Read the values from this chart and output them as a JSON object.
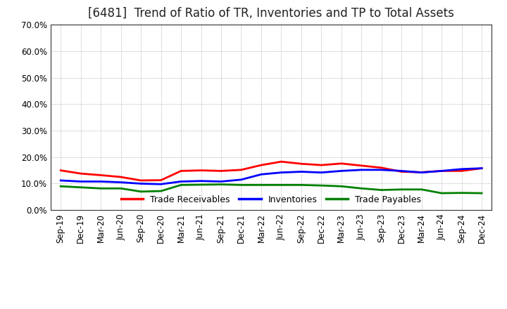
{
  "title": "[6481]  Trend of Ratio of TR, Inventories and TP to Total Assets",
  "x_labels": [
    "Sep-19",
    "Dec-19",
    "Mar-20",
    "Jun-20",
    "Sep-20",
    "Dec-20",
    "Mar-21",
    "Jun-21",
    "Sep-21",
    "Dec-21",
    "Mar-22",
    "Jun-22",
    "Sep-22",
    "Dec-22",
    "Mar-23",
    "Jun-23",
    "Sep-23",
    "Dec-23",
    "Mar-24",
    "Jun-24",
    "Sep-24",
    "Dec-24"
  ],
  "trade_receivables": [
    0.15,
    0.138,
    0.132,
    0.125,
    0.112,
    0.113,
    0.148,
    0.15,
    0.148,
    0.152,
    0.17,
    0.183,
    0.175,
    0.17,
    0.176,
    0.168,
    0.16,
    0.145,
    0.143,
    0.148,
    0.148,
    0.158
  ],
  "inventories": [
    0.112,
    0.108,
    0.108,
    0.105,
    0.1,
    0.098,
    0.108,
    0.11,
    0.108,
    0.115,
    0.135,
    0.142,
    0.145,
    0.142,
    0.148,
    0.152,
    0.152,
    0.148,
    0.142,
    0.148,
    0.155,
    0.158
  ],
  "trade_payables": [
    0.09,
    0.086,
    0.082,
    0.082,
    0.07,
    0.072,
    0.095,
    0.096,
    0.097,
    0.095,
    0.095,
    0.095,
    0.095,
    0.093,
    0.09,
    0.082,
    0.076,
    0.078,
    0.078,
    0.064,
    0.065,
    0.064
  ],
  "line_colors": {
    "trade_receivables": "#FF0000",
    "inventories": "#0000FF",
    "trade_payables": "#008000"
  },
  "line_width": 2.0,
  "ylim": [
    0.0,
    0.7
  ],
  "yticks": [
    0.0,
    0.1,
    0.2,
    0.3,
    0.4,
    0.5,
    0.6,
    0.7
  ],
  "background_color": "#FFFFFF",
  "grid_color": "#999999",
  "title_fontsize": 12,
  "tick_fontsize": 8.5,
  "legend_labels": [
    "Trade Receivables",
    "Inventories",
    "Trade Payables"
  ],
  "legend_fontsize": 9
}
